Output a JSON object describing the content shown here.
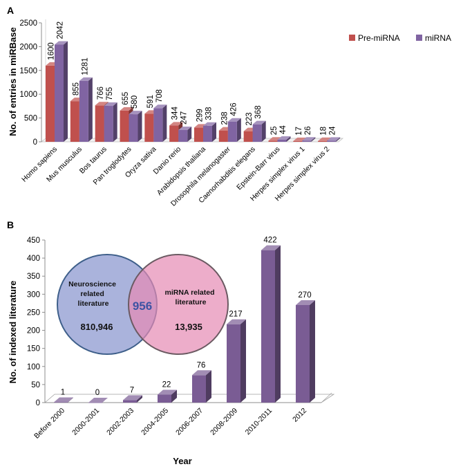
{
  "chart_data": [
    {
      "panel_label": "A",
      "type": "bar",
      "style": "3d-grouped",
      "categories": [
        "Homo sapiens",
        "Mus musculus",
        "Bos taurus",
        "Pan troglodytes",
        "Oryza sativa",
        "Danio rerio",
        "Arabidopsis thaliana",
        "Drosophila melanogaster",
        "Caenorhabditis elegans",
        "Epstein-Barr virus",
        "Herpes simplex virus 1",
        "Herpes simplex virus 2"
      ],
      "series": [
        {
          "name": "Pre-miRNA",
          "color": "#c0504d",
          "values": [
            1600,
            855,
            766,
            655,
            591,
            344,
            299,
            238,
            223,
            25,
            17,
            18
          ]
        },
        {
          "name": "miRNA",
          "color": "#8064a2",
          "values": [
            2042,
            1281,
            755,
            580,
            708,
            247,
            338,
            426,
            368,
            44,
            26,
            24
          ]
        }
      ],
      "value_labels": [
        [
          "1600",
          "855",
          "766",
          "655",
          "591",
          "344",
          "299",
          "238",
          "223",
          "25",
          "17",
          "18"
        ],
        [
          "2042",
          "1281",
          "755",
          "580",
          "708",
          "247",
          "338",
          "426",
          "368",
          "44",
          "26",
          "24"
        ]
      ],
      "ylabel": "No. of entries in miRBase",
      "xlabel": "",
      "ylim": [
        0,
        2500
      ],
      "yticks": [
        "0",
        "500",
        "1000",
        "1500",
        "2000",
        "2500"
      ],
      "legend_position": "top-right"
    },
    {
      "panel_label": "B",
      "type": "bar",
      "style": "3d",
      "categories": [
        "Before 2000",
        "2000-2001",
        "2002-2003",
        "2004-2005",
        "2006-2007",
        "2008-2009",
        "2010-2011",
        "2012"
      ],
      "series": [
        {
          "name": "Indexed literature",
          "color": "#7a5c94",
          "values": [
            1,
            0,
            7,
            22,
            76,
            217,
            422,
            270
          ]
        }
      ],
      "value_labels": [
        "1",
        "0",
        "7",
        "22",
        "76",
        "217",
        "422",
        "270"
      ],
      "xlabel": "Year",
      "ylabel": "No. of indexed literature",
      "ylim": [
        0,
        450
      ],
      "yticks": [
        "0",
        "50",
        "100",
        "150",
        "200",
        "250",
        "300",
        "350",
        "400",
        "450"
      ],
      "venn": {
        "left_label": "Neuroscience related literature",
        "left_label_lines": [
          "Neuroscience",
          "related",
          "literature"
        ],
        "left_count": "810,946",
        "right_label_lines": [
          "miRNA related",
          "literature"
        ],
        "right_count": "13,935",
        "overlap_count": "956",
        "left_color": "#7f8fc9",
        "right_color": "#e07aa8",
        "overlap_text_color": "#3d53a3"
      }
    }
  ]
}
